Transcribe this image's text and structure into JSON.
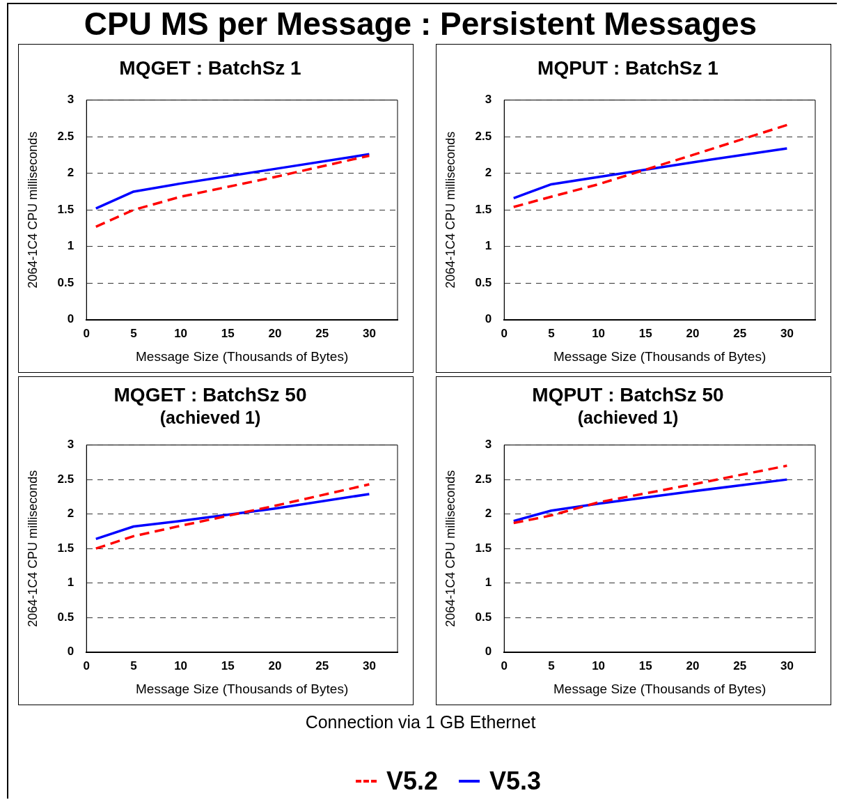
{
  "chart_data": [
    {
      "type": "line",
      "title": "MQGET : BatchSz 1",
      "xlabel": "Message Size (Thousands of Bytes)",
      "ylabel": "2064-1C4 CPU milliseconds",
      "annotations": [
        "CPU MS per Message : Persistent Messages"
      ],
      "x": [
        1,
        5,
        10,
        20,
        30
      ],
      "xlim": [
        0,
        33
      ],
      "xticks": [
        0,
        5,
        10,
        15,
        20,
        25,
        30
      ],
      "ylim": [
        0,
        3
      ],
      "yticks": [
        0,
        0.5,
        1,
        1.5,
        2,
        2.5,
        3
      ],
      "grid": "y",
      "legend": "bottom",
      "marker": "none",
      "series": [
        {
          "name": "V5.2",
          "color": "#ff0000",
          "line_style": "dashed",
          "values": [
            1.27,
            1.5,
            1.68,
            1.95,
            2.24
          ]
        },
        {
          "name": "V5.3",
          "color": "#0000ff",
          "line_style": "solid",
          "values": [
            1.52,
            1.75,
            1.86,
            2.06,
            2.26
          ]
        }
      ]
    },
    {
      "type": "line",
      "title": "MQPUT : BatchSz 1",
      "xlabel": "Message Size (Thousands of Bytes)",
      "ylabel": "2064-1C4 CPU milliseconds",
      "x": [
        1,
        5,
        10,
        20,
        30
      ],
      "xlim": [
        0,
        33
      ],
      "xticks": [
        0,
        5,
        10,
        15,
        20,
        25,
        30
      ],
      "ylim": [
        0,
        3
      ],
      "yticks": [
        0,
        0.5,
        1,
        1.5,
        2,
        2.5,
        3
      ],
      "grid": "y",
      "marker": "none",
      "series": [
        {
          "color": "#ff0000",
          "line_style": "dashed",
          "values": [
            1.54,
            1.68,
            1.85,
            2.25,
            2.66
          ]
        },
        {
          "color": "#0000ff",
          "line_style": "solid",
          "values": [
            1.66,
            1.85,
            1.95,
            2.15,
            2.34
          ]
        }
      ]
    },
    {
      "type": "line",
      "title": "MQGET : BatchSz 50",
      "subtitle": "(achieved 1)",
      "xlabel": "Message Size (Thousands of Bytes)",
      "ylabel": "2064-1C4 CPU milliseconds",
      "x": [
        1,
        5,
        10,
        20,
        30
      ],
      "xlim": [
        0,
        33
      ],
      "xticks": [
        0,
        5,
        10,
        15,
        20,
        25,
        30
      ],
      "ylim": [
        0,
        3
      ],
      "yticks": [
        0,
        0.5,
        1,
        1.5,
        2,
        2.5,
        3
      ],
      "grid": "y",
      "marker": "none",
      "series": [
        {
          "color": "#ff0000",
          "line_style": "dashed",
          "values": [
            1.5,
            1.68,
            1.83,
            2.12,
            2.43
          ]
        },
        {
          "color": "#0000ff",
          "line_style": "solid",
          "values": [
            1.64,
            1.82,
            1.9,
            2.08,
            2.29
          ]
        }
      ]
    },
    {
      "type": "line",
      "title": "MQPUT : BatchSz 50",
      "subtitle": "(achieved 1)",
      "xlabel": "Message Size (Thousands of Bytes)",
      "ylabel": "2064-1C4 CPU milliseconds",
      "annotations": [
        "Connection via 1 GB Ethernet"
      ],
      "x": [
        1,
        5,
        10,
        20,
        30
      ],
      "xlim": [
        0,
        33
      ],
      "xticks": [
        0,
        5,
        10,
        15,
        20,
        25,
        30
      ],
      "ylim": [
        0,
        3
      ],
      "yticks": [
        0,
        0.5,
        1,
        1.5,
        2,
        2.5,
        3
      ],
      "grid": "y",
      "marker": "none",
      "series": [
        {
          "color": "#ff0000",
          "line_style": "dashed",
          "values": [
            1.87,
            1.98,
            2.17,
            2.43,
            2.7
          ]
        },
        {
          "color": "#0000ff",
          "line_style": "solid",
          "values": [
            1.9,
            2.05,
            2.15,
            2.33,
            2.5
          ]
        }
      ]
    }
  ]
}
